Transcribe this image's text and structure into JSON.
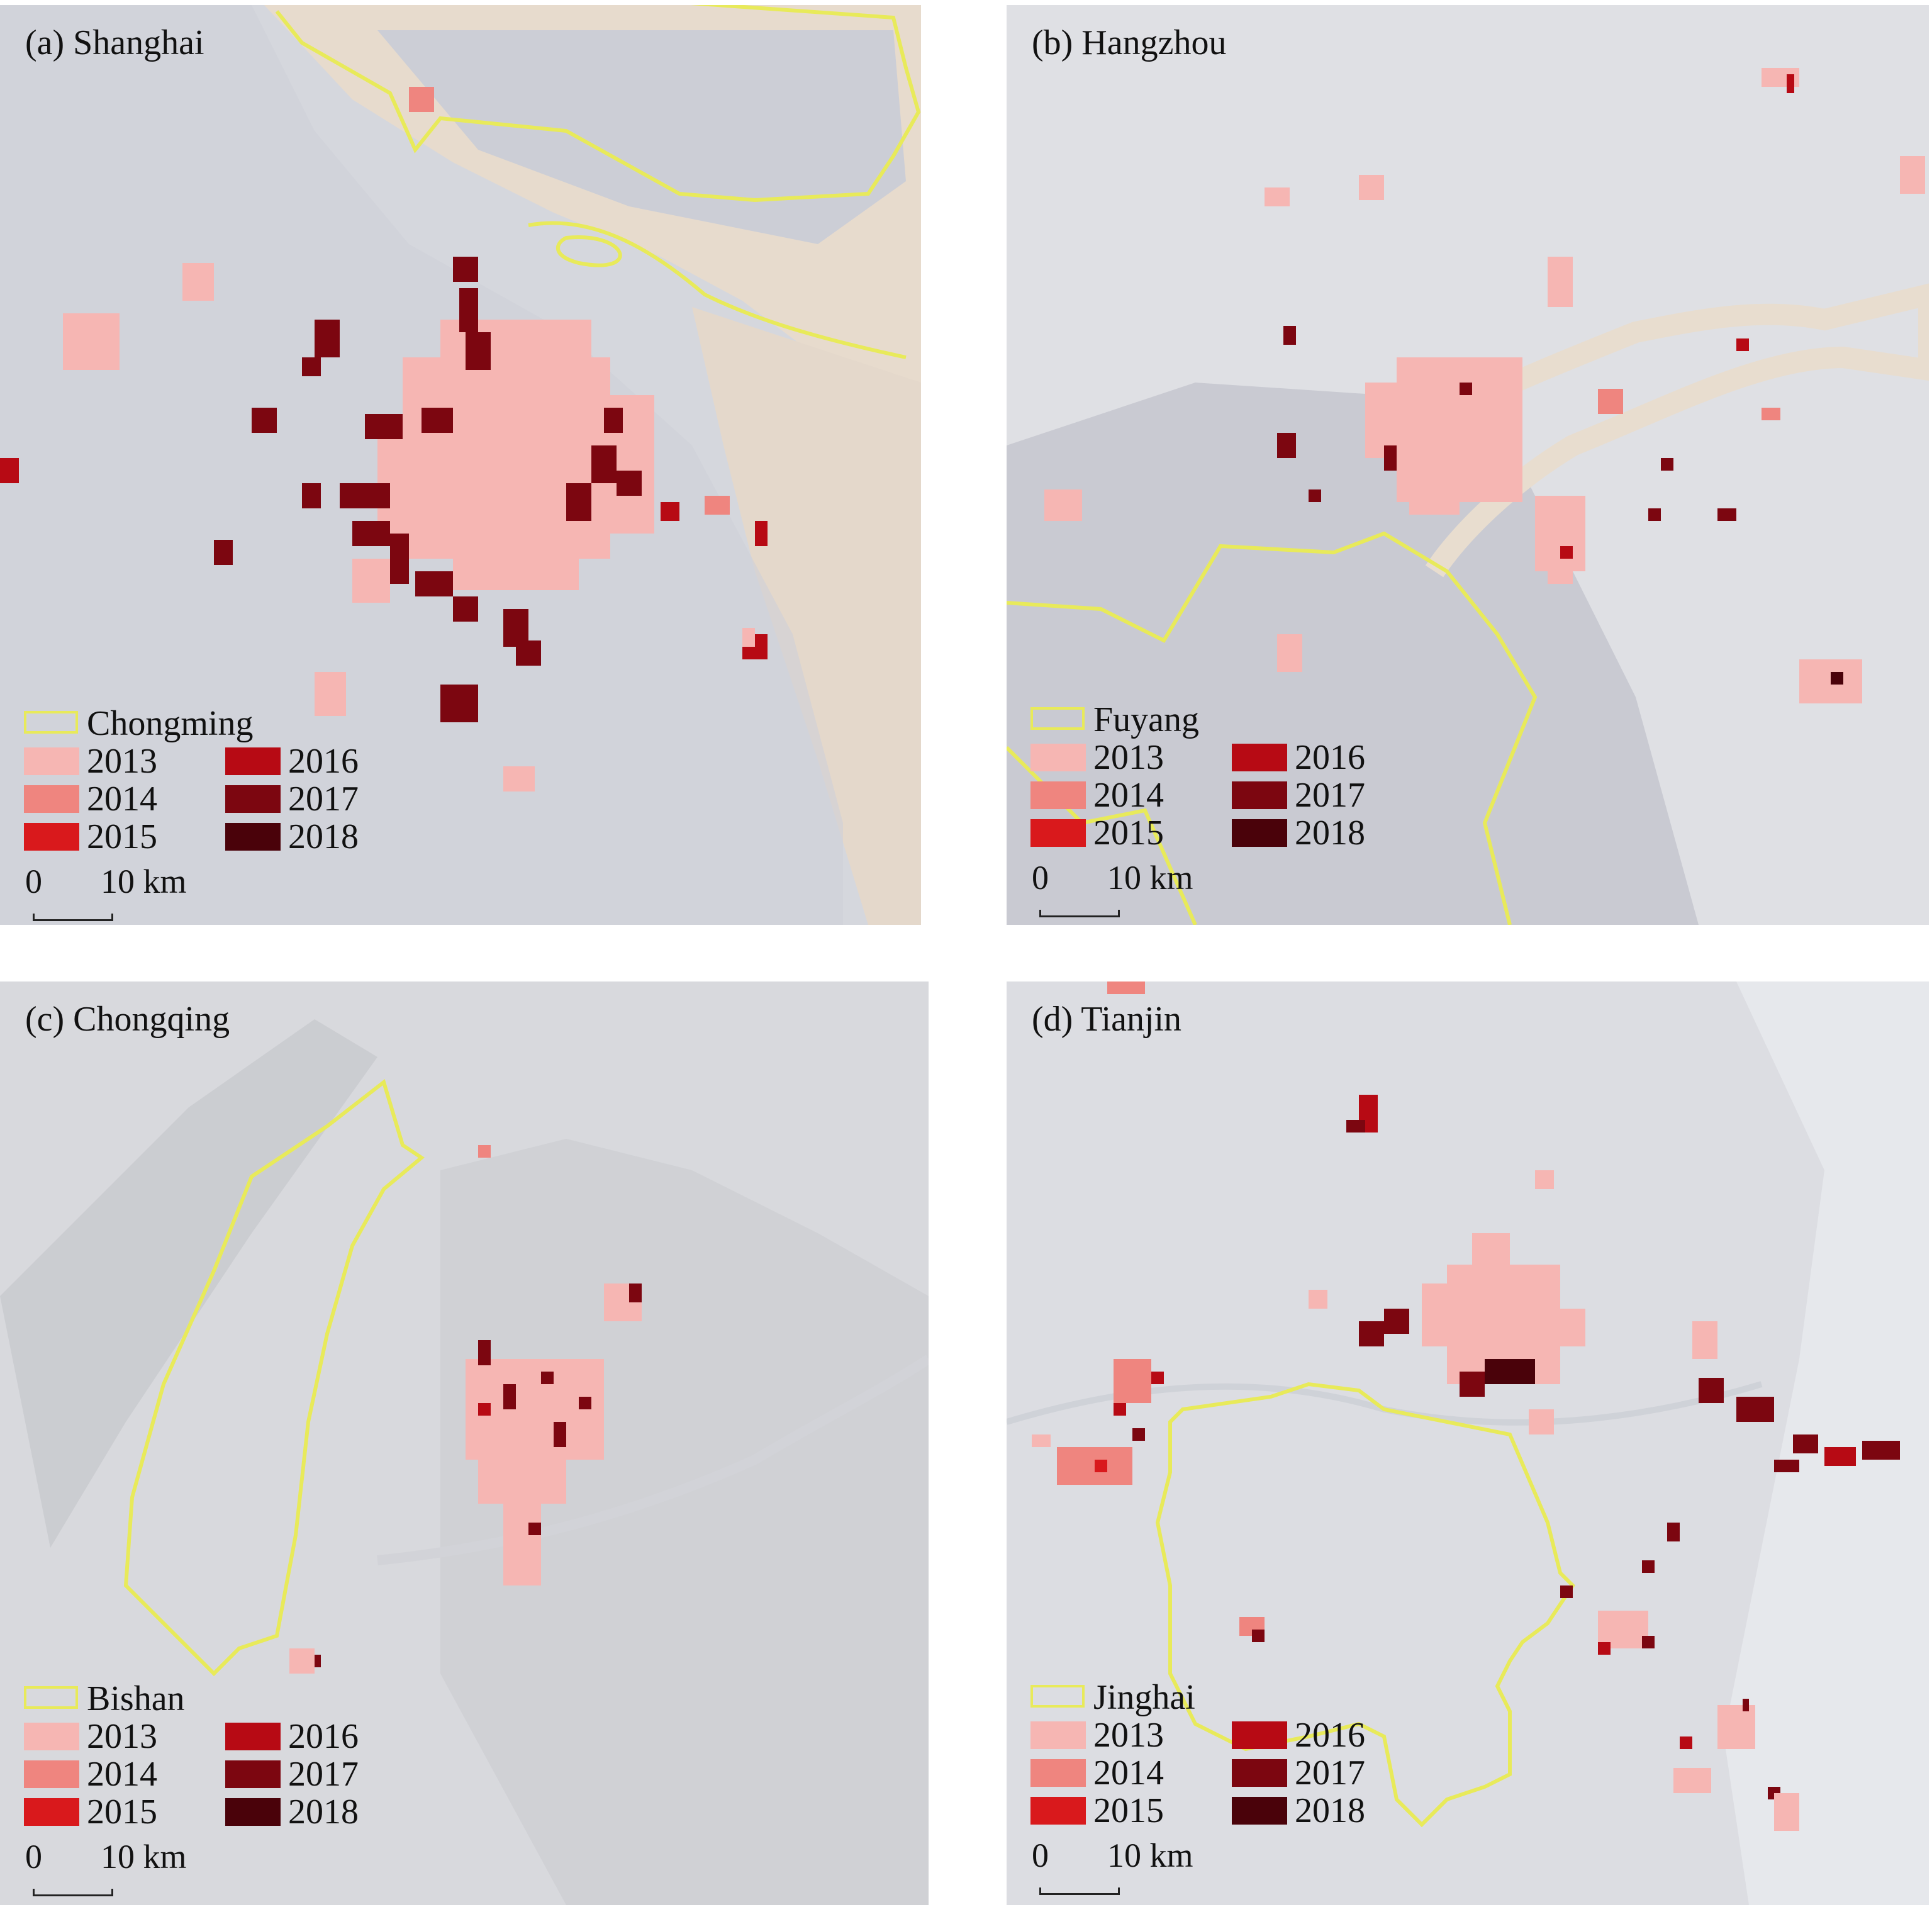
{
  "colors": {
    "boundary": "#e8ea5a",
    "y2013": "#f6b6b3",
    "y2014": "#ef857f",
    "y2015": "#d9191c",
    "y2016": "#b70a14",
    "y2017": "#7c0610",
    "y2018": "#4a020a"
  },
  "legend_years": [
    "2013",
    "2014",
    "2015",
    "2016",
    "2017",
    "2018"
  ],
  "scale": {
    "zero": "0",
    "ten": "10 km"
  },
  "panels": [
    {
      "title": "(a) Shanghai",
      "boundary_name": "Chongming",
      "imagery": "satellite-imagery-with-river-estuary"
    },
    {
      "title": "(b) Hangzhou",
      "boundary_name": "Fuyang",
      "imagery": "satellite-imagery-with-qiantang-river"
    },
    {
      "title": "(c) Chongqing",
      "boundary_name": "Bishan",
      "imagery": "satellite-imagery-with-mountain-ridges"
    },
    {
      "title": "(d) Tianjin",
      "boundary_name": "Jinghai",
      "imagery": "satellite-imagery-with-coastline"
    }
  ]
}
